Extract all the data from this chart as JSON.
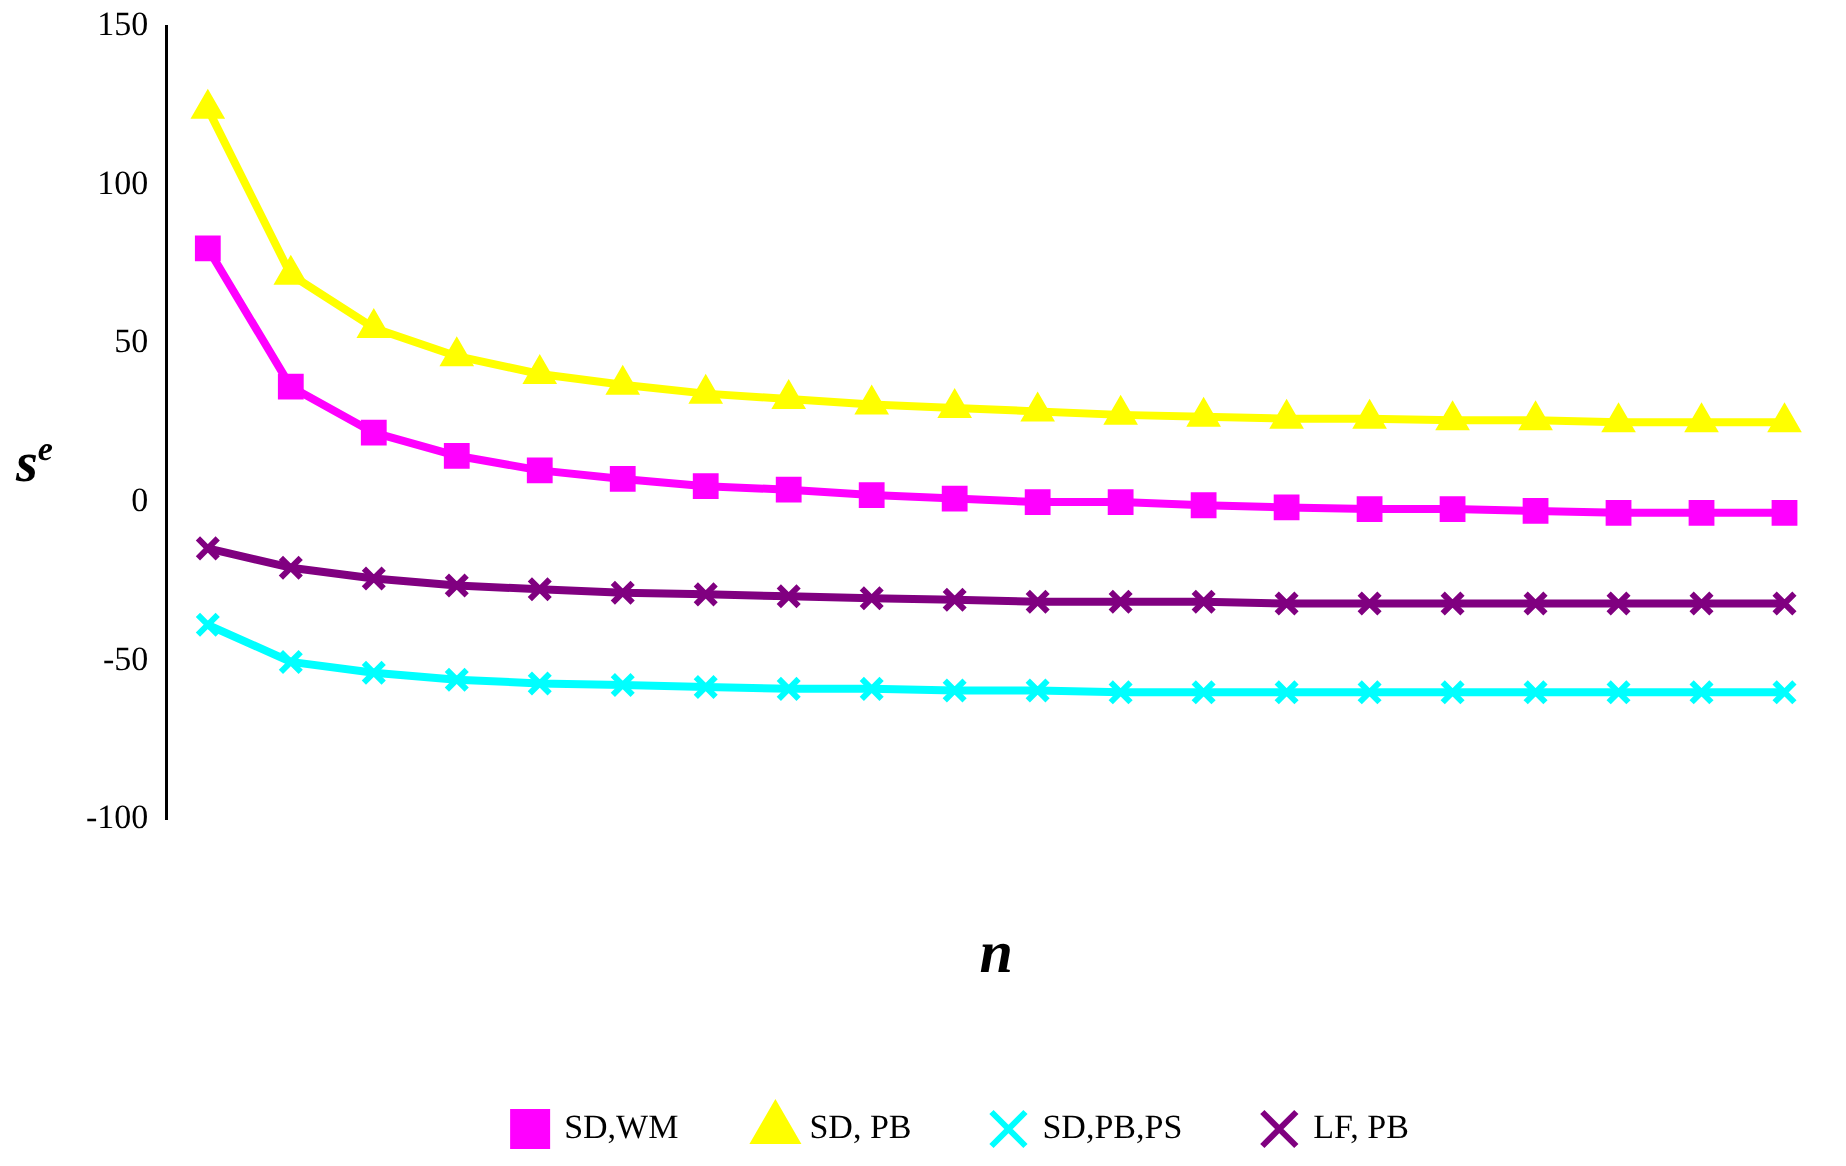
{
  "chart_data": {
    "type": "line",
    "xlabel": "n",
    "ylabel": "s$^{e}$",
    "categories": [
      null,
      null,
      null,
      null,
      null,
      null,
      null,
      null,
      null,
      null,
      null,
      null,
      null,
      null,
      null,
      null,
      null,
      null,
      null,
      null
    ],
    "series": [
      {
        "name": "SD,WM",
        "color": "#ff00ff",
        "marker": "square",
        "values": [
          80,
          36.4,
          21.9,
          14.6,
          10,
          7.3,
          5,
          3.9,
          2.2,
          1.1,
          0,
          0,
          -1,
          -1.7,
          -2.2,
          -2.2,
          -2.8,
          -3.4,
          -3.4,
          -3.4
        ]
      },
      {
        "name": "SD, PB",
        "color": "#ffff00",
        "marker": "triangle",
        "values": [
          124,
          71.7,
          54.9,
          46,
          40.4,
          37,
          34.2,
          32.5,
          30.8,
          29.7,
          28.6,
          27.5,
          26.9,
          26.3,
          26.3,
          25.8,
          25.8,
          25.2,
          25.2,
          25.2
        ]
      },
      {
        "name": "SD,PB,PS",
        "color": "#00ffff",
        "marker": "cross",
        "values": [
          -38.7,
          -50.4,
          -53.8,
          -56,
          -57.2,
          -57.7,
          -58.3,
          -58.9,
          -58.9,
          -59.4,
          -59.4,
          -60,
          -60,
          -60,
          -60,
          -60,
          -60,
          -60,
          -60,
          -60
        ]
      },
      {
        "name": "LF, PB",
        "color": "#800080",
        "marker": "cross",
        "values": [
          -14.6,
          -20.7,
          -24.1,
          -26.3,
          -27.5,
          -28.6,
          -29.1,
          -29.7,
          -30.3,
          -30.8,
          -31.4,
          -31.4,
          -31.4,
          -32,
          -32,
          -32,
          -32,
          -32,
          -32,
          -32
        ]
      }
    ],
    "ylim": [
      -100,
      150
    ],
    "yticks": [
      -100,
      -50,
      0,
      50,
      100,
      150
    ],
    "grid": false,
    "legend": "bottom",
    "line_style": "solid"
  }
}
